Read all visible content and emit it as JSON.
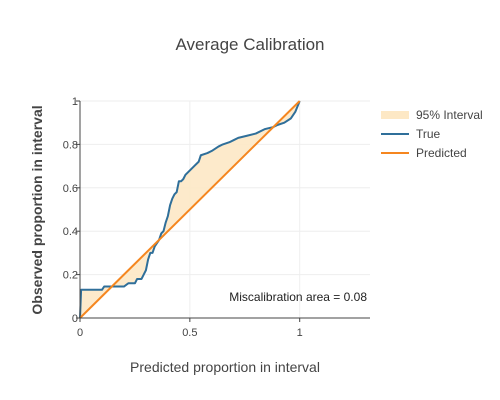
{
  "chart_data": {
    "type": "line",
    "title": "Average Calibration",
    "xlabel": "Predicted proportion in interval",
    "ylabel": "Observed proportion in interval",
    "xlim": [
      0,
      1.32
    ],
    "ylim": [
      0,
      1
    ],
    "x_ticks": [
      {
        "value": 0,
        "label": "0"
      },
      {
        "value": 0.5,
        "label": "0.5"
      },
      {
        "value": 1,
        "label": "1"
      }
    ],
    "y_ticks": [
      {
        "value": 0,
        "label": "0"
      },
      {
        "value": 0.2,
        "label": "0.2"
      },
      {
        "value": 0.4,
        "label": "0.4"
      },
      {
        "value": 0.6,
        "label": "0.6"
      },
      {
        "value": 0.8,
        "label": "0.8"
      },
      {
        "value": 1,
        "label": "1"
      }
    ],
    "grid": true,
    "legend_position": "top-right",
    "legend": [
      {
        "label": "95% Interval",
        "kind": "fill",
        "color": "#fde8c5"
      },
      {
        "label": "True",
        "kind": "line",
        "color": "#2f6f9a"
      },
      {
        "label": "Predicted",
        "kind": "line",
        "color": "#f5861f"
      }
    ],
    "series": [
      {
        "name": "True",
        "color": "#2f6f9a",
        "points": [
          [
            0,
            0
          ],
          [
            0.005,
            0.13
          ],
          [
            0.05,
            0.13
          ],
          [
            0.1,
            0.13
          ],
          [
            0.11,
            0.145
          ],
          [
            0.2,
            0.145
          ],
          [
            0.22,
            0.16
          ],
          [
            0.25,
            0.16
          ],
          [
            0.26,
            0.18
          ],
          [
            0.28,
            0.18
          ],
          [
            0.29,
            0.2
          ],
          [
            0.3,
            0.22
          ],
          [
            0.31,
            0.27
          ],
          [
            0.32,
            0.3
          ],
          [
            0.33,
            0.3
          ],
          [
            0.34,
            0.33
          ],
          [
            0.36,
            0.36
          ],
          [
            0.37,
            0.39
          ],
          [
            0.38,
            0.4
          ],
          [
            0.39,
            0.44
          ],
          [
            0.4,
            0.47
          ],
          [
            0.41,
            0.52
          ],
          [
            0.42,
            0.55
          ],
          [
            0.43,
            0.57
          ],
          [
            0.44,
            0.58
          ],
          [
            0.45,
            0.63
          ],
          [
            0.46,
            0.63
          ],
          [
            0.47,
            0.64
          ],
          [
            0.48,
            0.66
          ],
          [
            0.5,
            0.68
          ],
          [
            0.52,
            0.7
          ],
          [
            0.54,
            0.72
          ],
          [
            0.55,
            0.75
          ],
          [
            0.58,
            0.76
          ],
          [
            0.6,
            0.77
          ],
          [
            0.63,
            0.79
          ],
          [
            0.65,
            0.8
          ],
          [
            0.68,
            0.81
          ],
          [
            0.7,
            0.82
          ],
          [
            0.72,
            0.83
          ],
          [
            0.76,
            0.84
          ],
          [
            0.8,
            0.85
          ],
          [
            0.84,
            0.87
          ],
          [
            0.88,
            0.88
          ],
          [
            0.9,
            0.89
          ],
          [
            0.93,
            0.9
          ],
          [
            0.96,
            0.92
          ],
          [
            0.98,
            0.95
          ],
          [
            1,
            1
          ]
        ]
      },
      {
        "name": "Predicted",
        "color": "#f5861f",
        "points": [
          [
            0,
            0
          ],
          [
            1,
            1
          ]
        ]
      }
    ],
    "annotation": "Miscalibration area = 0.08"
  }
}
